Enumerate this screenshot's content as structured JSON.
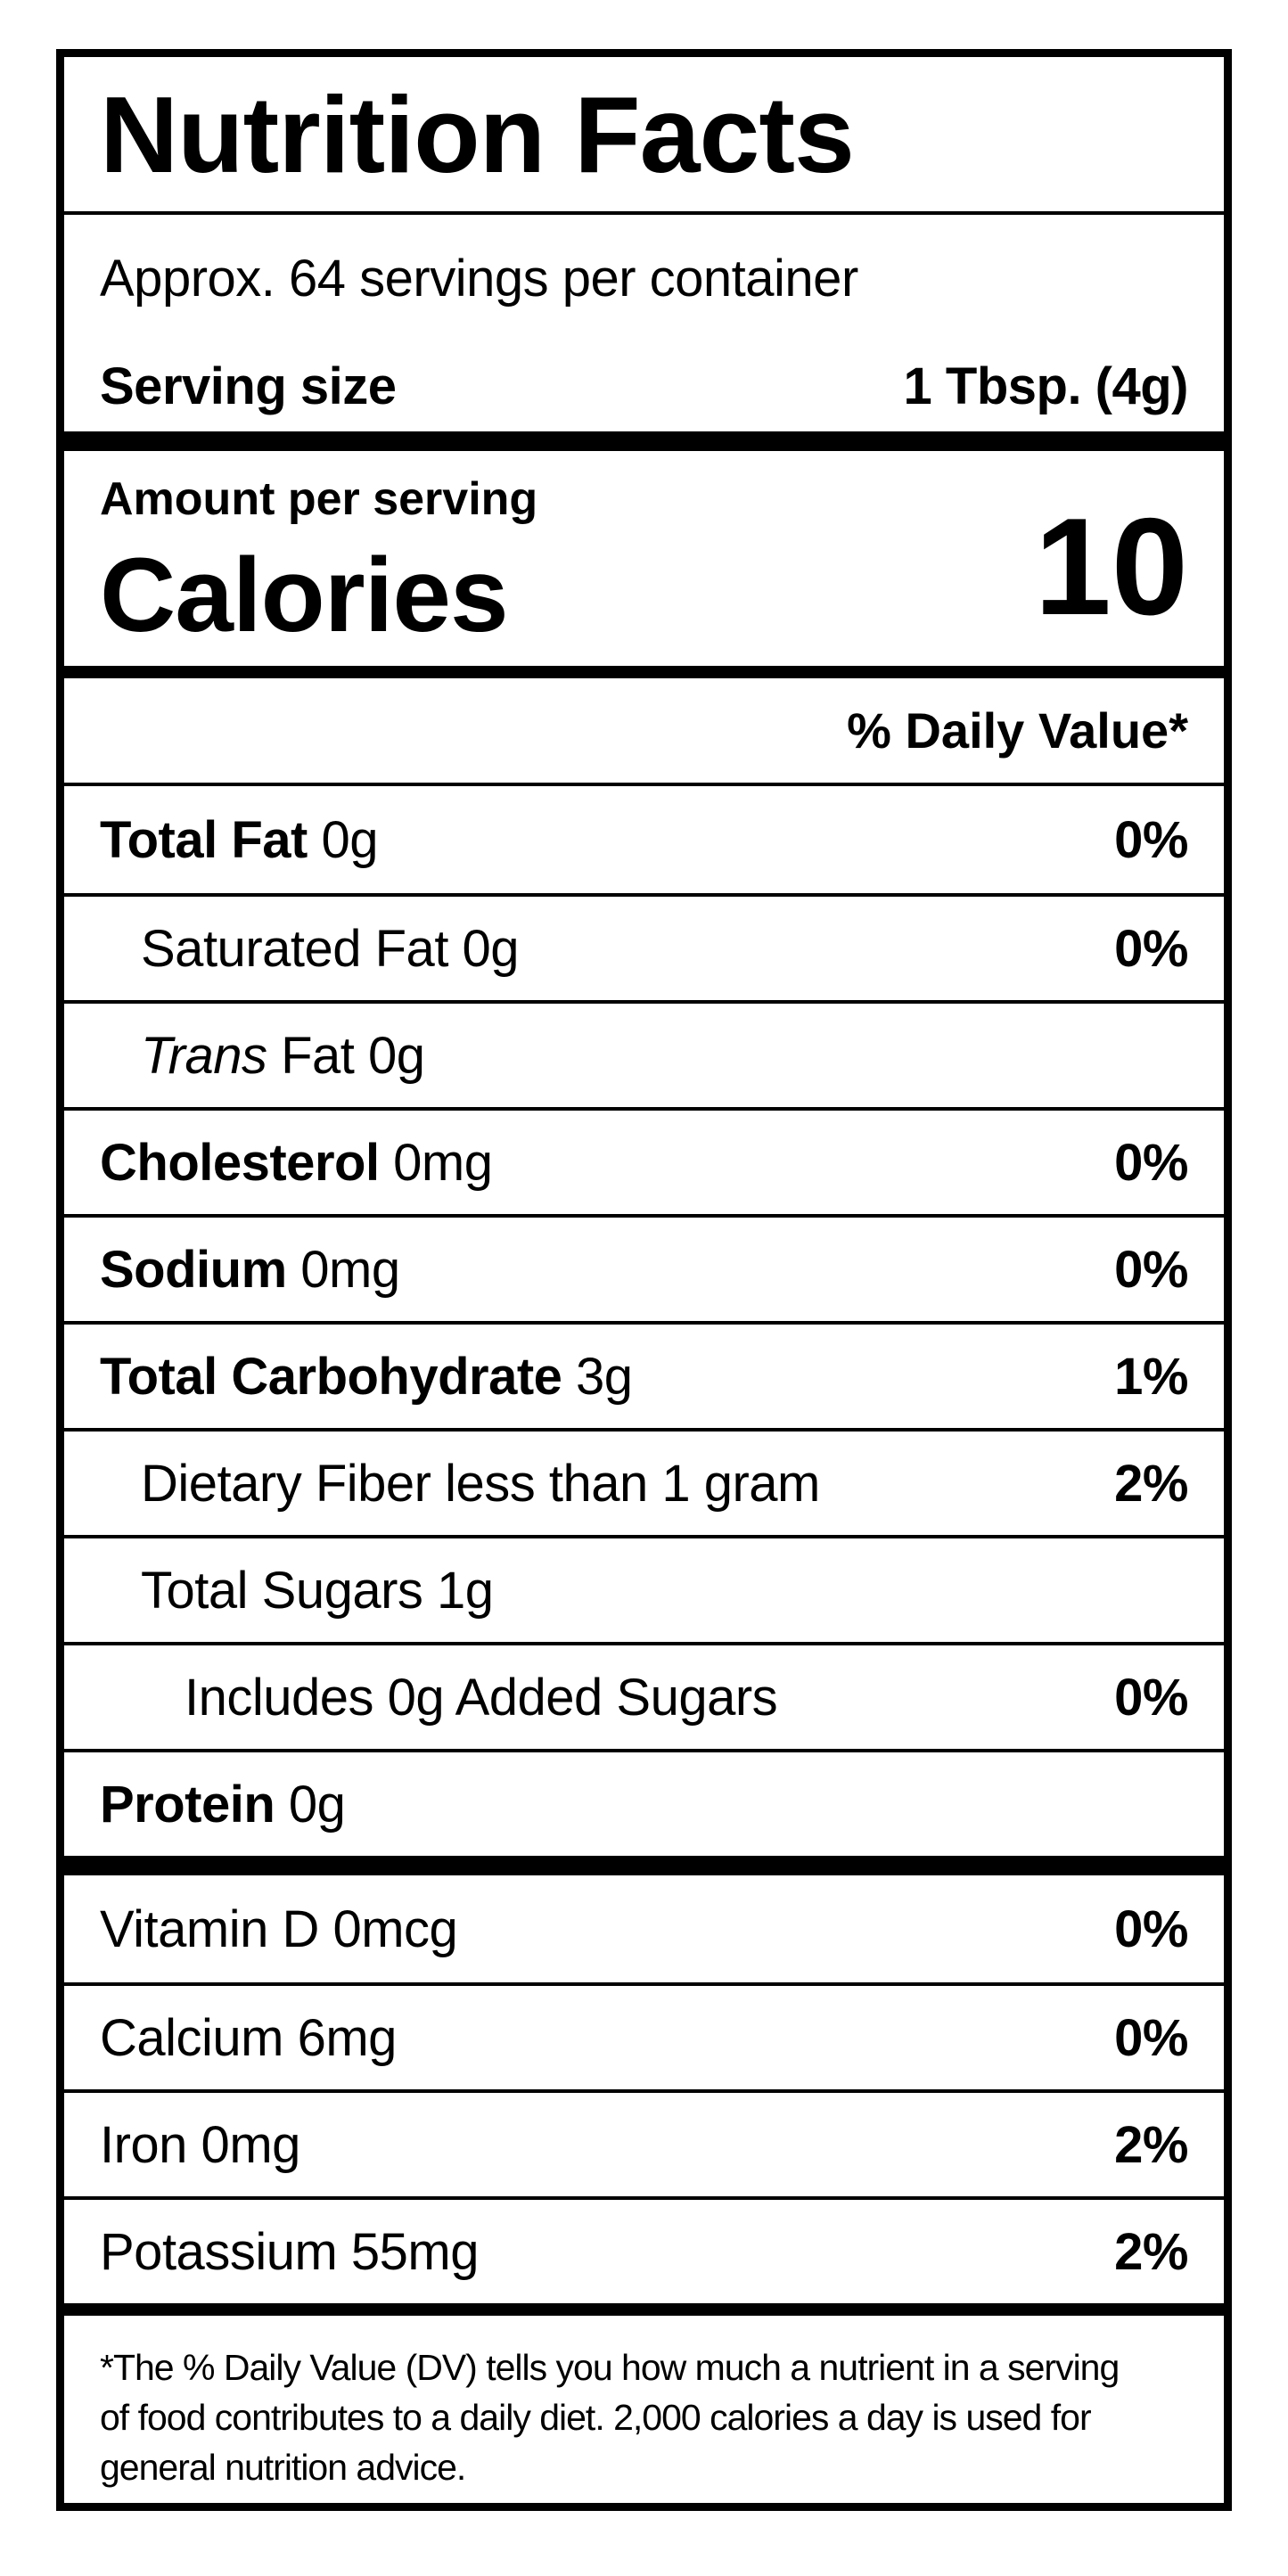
{
  "colors": {
    "background": "#ffffff",
    "ink": "#000000"
  },
  "label": {
    "title": "Nutrition Facts",
    "servings_per_container": "Approx. 64 servings per container",
    "serving_size": {
      "label": "Serving size",
      "value": "1 Tbsp. (4g)"
    },
    "calories": {
      "caption": "Amount per serving",
      "label": "Calories",
      "value": "10"
    },
    "daily_value_header": "% Daily Value*",
    "rows": [
      {
        "name": "Total Fat",
        "rest": " 0g",
        "dv": "0%"
      },
      {
        "name": "",
        "rest": "Saturated Fat 0g",
        "dv": "0%"
      },
      {
        "name": "Trans",
        "rest": " Fat 0g",
        "dv": ""
      },
      {
        "name": "Cholesterol",
        "rest": " 0mg",
        "dv": "0%"
      },
      {
        "name": "Sodium",
        "rest": " 0mg",
        "dv": "0%"
      },
      {
        "name": "Total Carbohydrate",
        "rest": " 3g",
        "dv": "1%"
      },
      {
        "name": "",
        "rest": "Dietary Fiber less than 1 gram",
        "dv": "2%"
      },
      {
        "name": "",
        "rest": "Total Sugars 1g",
        "dv": ""
      },
      {
        "name": "",
        "rest": "Includes 0g Added Sugars",
        "dv": "0%"
      },
      {
        "name": "Protein",
        "rest": " 0g",
        "dv": ""
      }
    ],
    "micros": [
      {
        "name": "",
        "rest": "Vitamin D 0mcg",
        "dv": "0%"
      },
      {
        "name": "",
        "rest": "Calcium 6mg",
        "dv": "0%"
      },
      {
        "name": "",
        "rest": "Iron 0mg",
        "dv": "2%"
      },
      {
        "name": "",
        "rest": "Potassium 55mg",
        "dv": "2%"
      }
    ],
    "footnote": "*The % Daily Value (DV) tells you how much a nutrient in a serving\nof food contributes to a daily diet. 2,000 calories a day is used for\ngeneral nutrition advice."
  }
}
